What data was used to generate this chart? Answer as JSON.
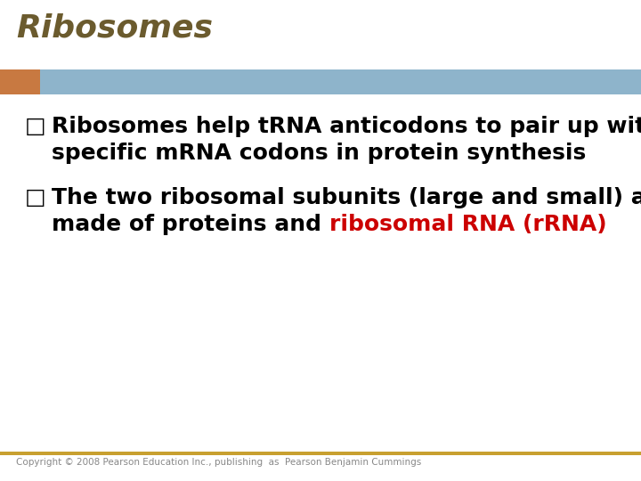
{
  "title": "Ribosomes",
  "title_color": "#6B5B2E",
  "title_fontsize": 26,
  "title_style": "italic",
  "title_weight": "bold",
  "bg_color": "#FFFFFF",
  "header_bar_color": "#8EB4CB",
  "header_bar_left_color": "#C87941",
  "bullet1_line1": "Ribosomes help tRNA anticodons to pair up with",
  "bullet1_line2": "specific mRNA codons in protein synthesis",
  "bullet2_line1": "The two ribosomal subunits (large and small) are",
  "bullet2_line2_black": "made of proteins and ",
  "bullet2_line2_red": "ribosomal RNA (rRNA)",
  "bullet_color": "#000000",
  "highlight_color": "#CC0000",
  "body_fontsize": 18,
  "bullet_char": "□",
  "footer_text": "Copyright © 2008 Pearson Education Inc., publishing  as  Pearson Benjamin Cummings",
  "footer_color": "#888888",
  "footer_line_color": "#C8A030",
  "footer_fontsize": 7.5
}
